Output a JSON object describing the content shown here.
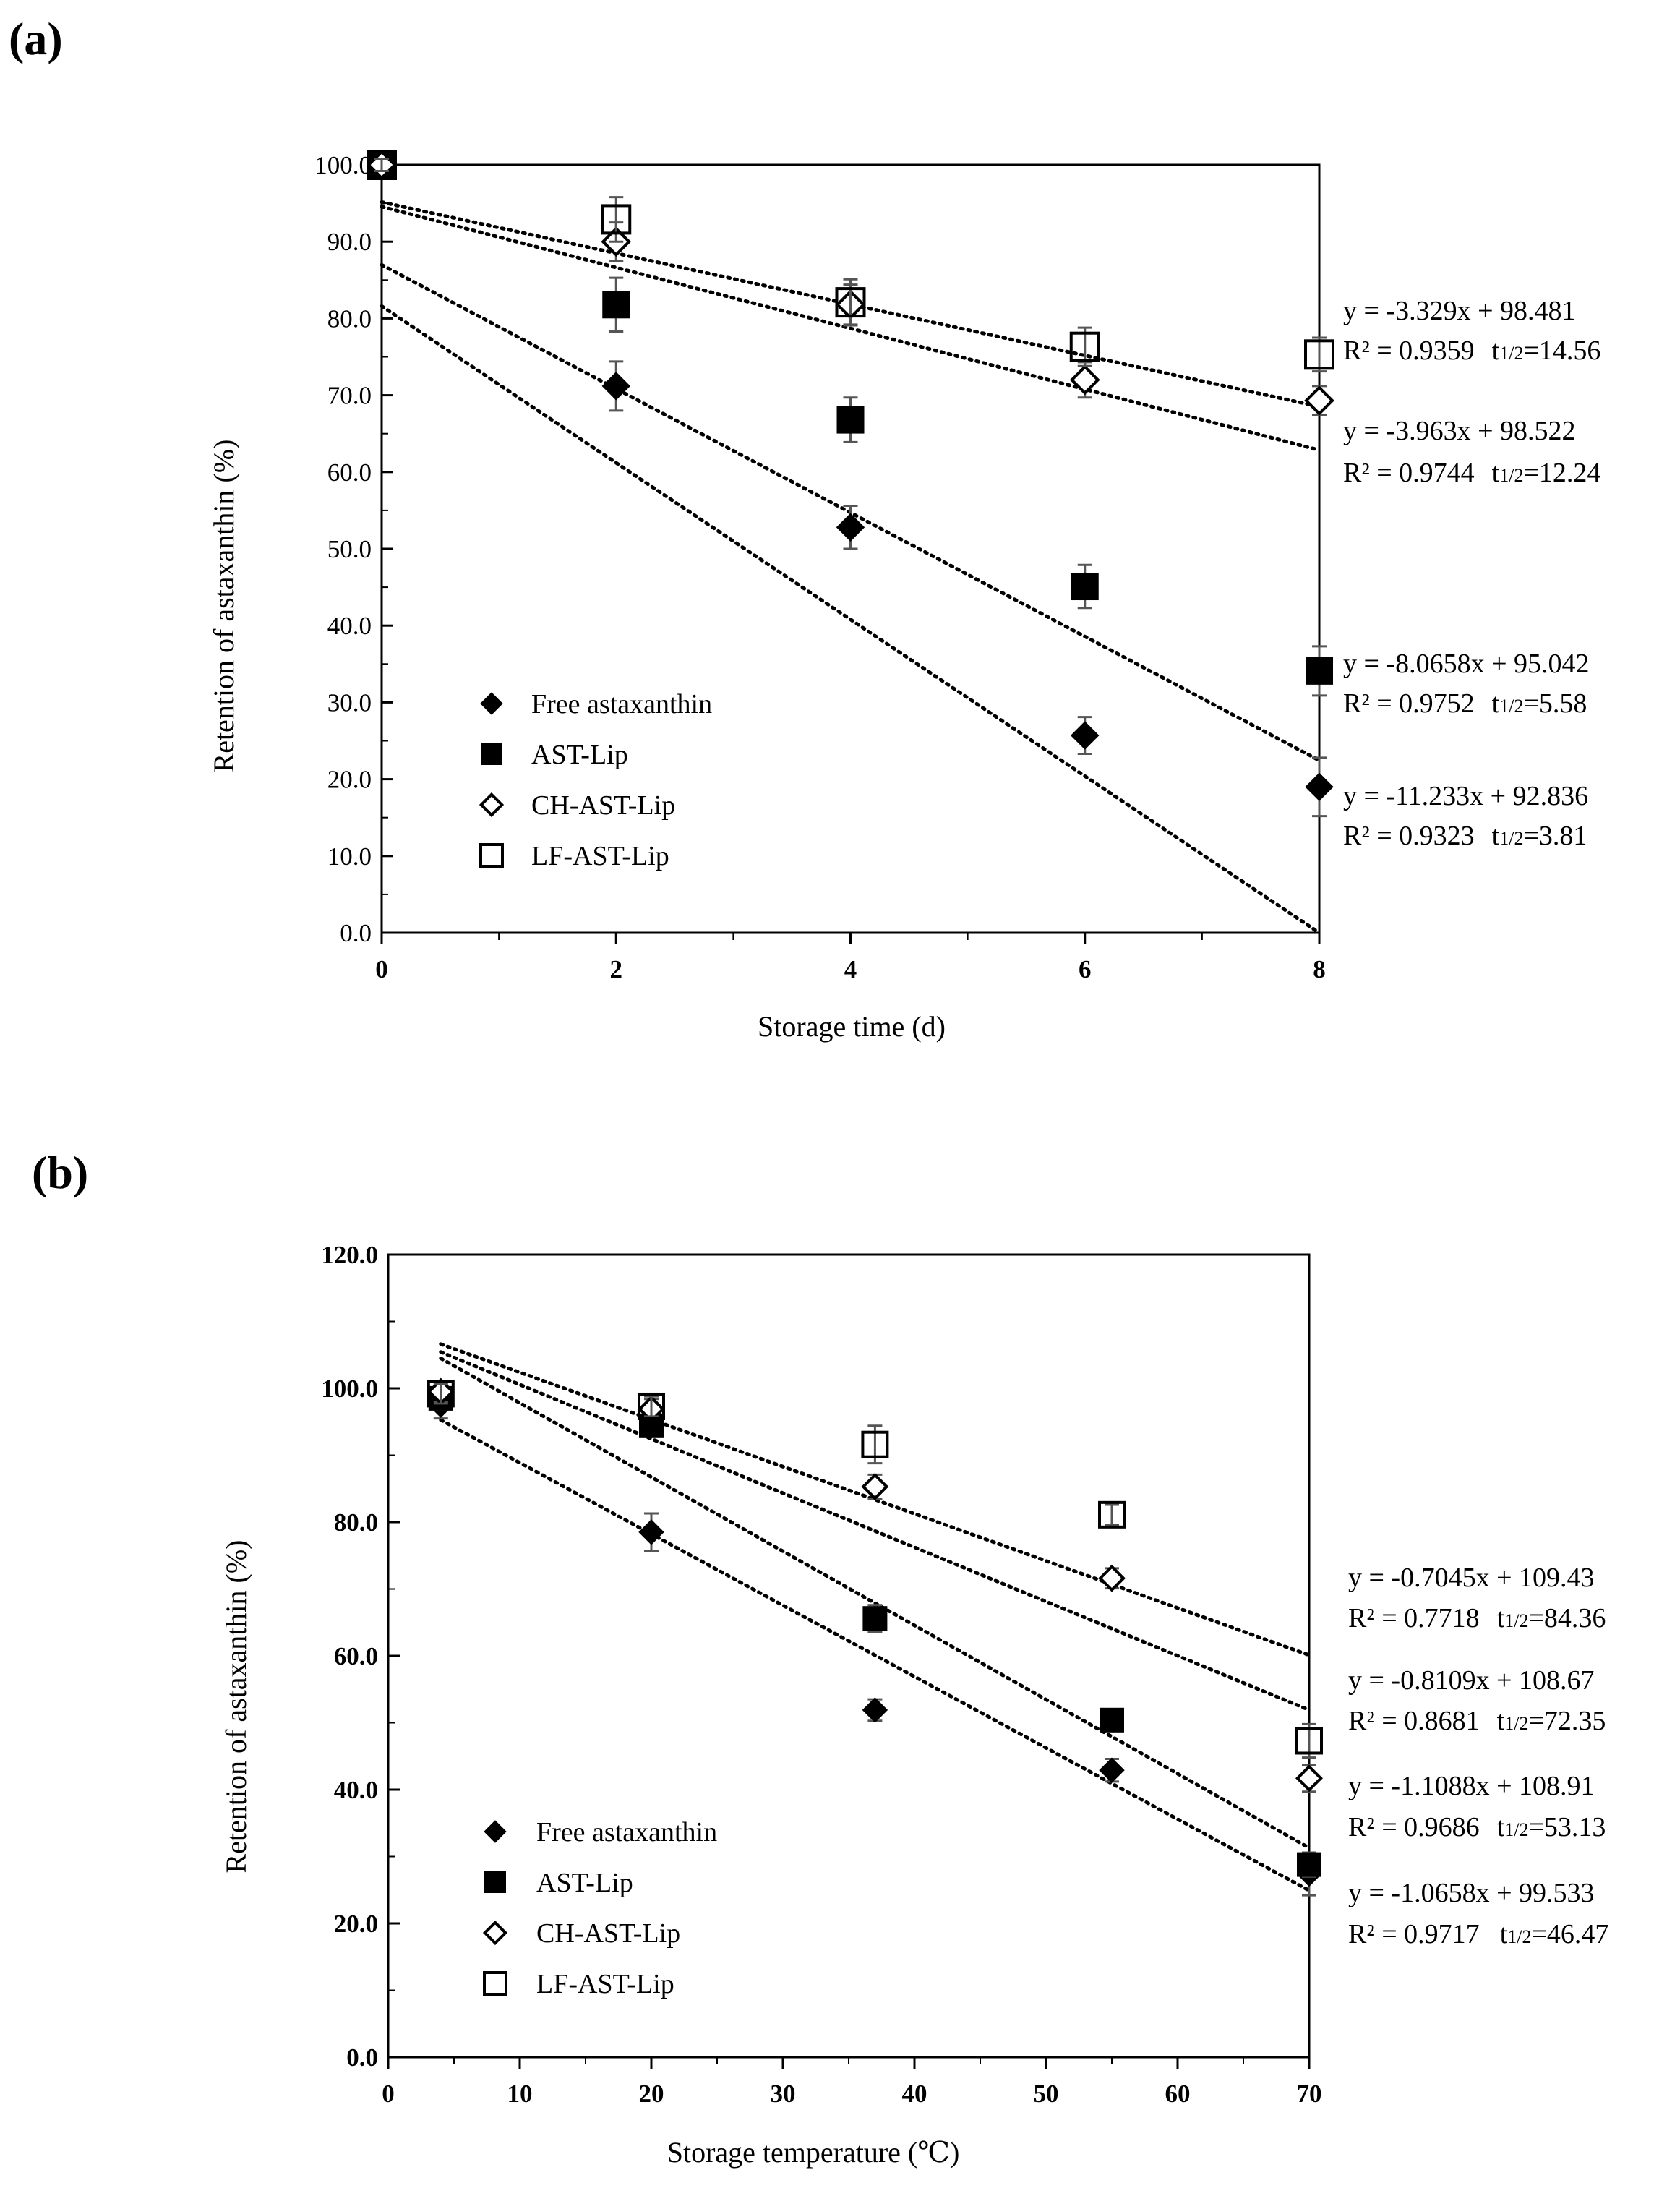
{
  "chart_data": [
    {
      "type": "scatter",
      "panel_label": "(a)",
      "xlabel": "Storage time (d)",
      "ylabel": "Retention of astaxanthin (%)",
      "xlim": [
        0,
        8
      ],
      "ylim": [
        0,
        100
      ],
      "x_ticks": [
        "0",
        "2",
        "4",
        "6",
        "8"
      ],
      "y_ticks": [
        "0.0",
        "10.0",
        "20.0",
        "30.0",
        "40.0",
        "50.0",
        "60.0",
        "70.0",
        "80.0",
        "90.0",
        "100.0"
      ],
      "x": [
        0,
        2,
        4,
        6,
        8
      ],
      "series": [
        {
          "name": "Free astaxanthin",
          "marker": "filled-diamond",
          "values": [
            100,
            71.2,
            52.8,
            25.7,
            19.0
          ],
          "errors": [
            0.8,
            3.2,
            2.8,
            2.4,
            3.8
          ],
          "fit": {
            "slope": -11.233,
            "intercept": 92.836
          },
          "equation": "y = -11.233x + 92.836",
          "r2": "R² = 0.9323",
          "half_life_label": "t",
          "half_life_sub": "1/2",
          "half_life_value": "=3.81"
        },
        {
          "name": "AST-Lip",
          "marker": "filled-square",
          "values": [
            100,
            81.8,
            66.8,
            45.1,
            34.1
          ],
          "errors": [
            0.8,
            3.5,
            2.9,
            2.8,
            3.2
          ],
          "fit": {
            "slope": -8.0658,
            "intercept": 95.042
          },
          "equation": "y = -8.0658x + 95.042",
          "r2": "R² = 0.9752",
          "half_life_label": "t",
          "half_life_sub": "1/2",
          "half_life_value": "=5.58"
        },
        {
          "name": "CH-AST-Lip",
          "marker": "open-diamond",
          "values": [
            100,
            90.0,
            81.8,
            72.0,
            69.3
          ],
          "errors": [
            0.8,
            2.5,
            2.6,
            2.3,
            1.9
          ],
          "fit": {
            "slope": -3.963,
            "intercept": 98.522
          },
          "equation": "y = -3.963x + 98.522",
          "r2": "R² = 0.9744",
          "half_life_label": "t",
          "half_life_sub": "1/2",
          "half_life_value": "=12.24"
        },
        {
          "name": "LF-AST-Lip",
          "marker": "open-square",
          "values": [
            100,
            92.9,
            82.1,
            76.3,
            75.3
          ],
          "errors": [
            0.8,
            2.9,
            3.0,
            2.5,
            2.2
          ],
          "fit": {
            "slope": -3.329,
            "intercept": 98.481
          },
          "equation": "y = -3.329x + 98.481",
          "r2": "R² = 0.9359",
          "half_life_label": "t",
          "half_life_sub": "1/2",
          "half_life_value": "=14.56"
        }
      ]
    },
    {
      "type": "scatter",
      "panel_label": "(b)",
      "xlabel": "Storage temperature (℃)",
      "ylabel": "Retention of astaxanthin (%)",
      "xlim": [
        0,
        70
      ],
      "ylim": [
        0,
        120
      ],
      "x_ticks": [
        "0",
        "10",
        "20",
        "30",
        "40",
        "50",
        "60",
        "70"
      ],
      "y_ticks": [
        "0.0",
        "20.0",
        "40.0",
        "60.0",
        "80.0",
        "100.0",
        "120.0"
      ],
      "x": [
        4,
        20,
        37,
        55,
        70
      ],
      "series": [
        {
          "name": "Free astaxanthin",
          "marker": "filled-diamond",
          "values": [
            97.5,
            78.5,
            51.9,
            42.9,
            27.4
          ],
          "errors": [
            2.0,
            2.8,
            1.6,
            1.7,
            3.2
          ],
          "fit": {
            "slope": -1.0658,
            "intercept": 99.533
          },
          "equation": "y = -1.0658x + 99.533",
          "r2": "R² = 0.9717",
          "half_life_label": "t",
          "half_life_sub": "1/2",
          "half_life_value": "=46.47"
        },
        {
          "name": "AST-Lip",
          "marker": "filled-square",
          "values": [
            98.5,
            94.4,
            65.6,
            50.4,
            28.8
          ],
          "errors": [
            1.8,
            1.6,
            2.0,
            1.5,
            1.8
          ],
          "fit": {
            "slope": -1.1088,
            "intercept": 108.91
          },
          "equation": "y = -1.1088x + 108.91",
          "r2": "R² = 0.9686",
          "half_life_label": "t",
          "half_life_sub": "1/2",
          "half_life_value": "=53.13"
        },
        {
          "name": "CH-AST-Lip",
          "marker": "open-diamond",
          "values": [
            99.5,
            96.9,
            85.3,
            71.6,
            41.7
          ],
          "errors": [
            1.5,
            1.5,
            1.8,
            1.5,
            2.0
          ],
          "fit": {
            "slope": -0.8109,
            "intercept": 108.67
          },
          "equation": "y = -0.8109x + 108.67",
          "r2": "R² = 0.8681",
          "half_life_label": "t",
          "half_life_sub": "1/2",
          "half_life_value": "=72.35"
        },
        {
          "name": "LF-AST-Lip",
          "marker": "open-square",
          "values": [
            99.2,
            97.3,
            91.6,
            81.1,
            47.3
          ],
          "errors": [
            1.5,
            1.5,
            2.8,
            1.5,
            2.5
          ],
          "fit": {
            "slope": -0.7045,
            "intercept": 109.43
          },
          "equation": "y = -0.7045x + 109.43",
          "r2": "R² = 0.7718",
          "half_life_label": "t",
          "half_life_sub": "1/2",
          "half_life_value": "=84.36"
        }
      ]
    }
  ]
}
